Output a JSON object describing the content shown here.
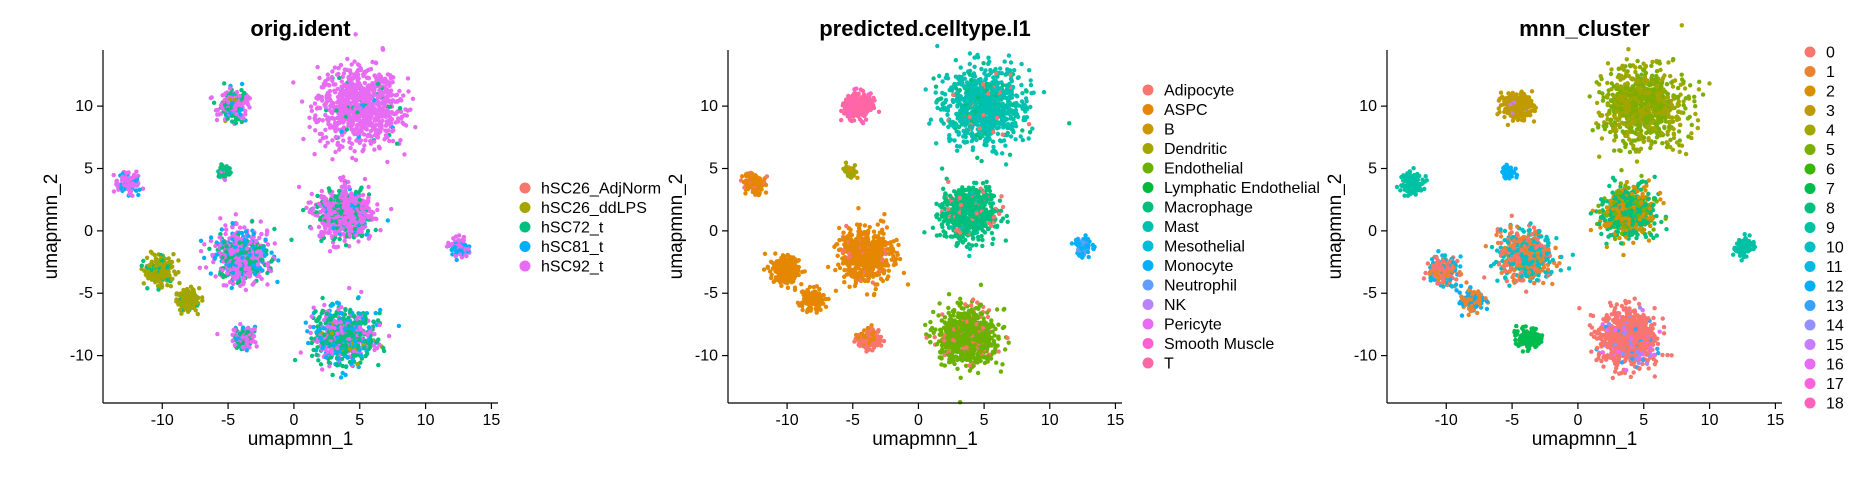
{
  "chart_data": [
    {
      "type": "scatter",
      "title": "orig.ident",
      "xlabel": "umapmnn_1",
      "ylabel": "umapmnn_2",
      "xlim": [
        -14.5,
        15.5
      ],
      "ylim": [
        -13.8,
        14.5
      ],
      "xticks": [
        -10,
        -5,
        0,
        5,
        10,
        15
      ],
      "yticks": [
        -10,
        -5,
        0,
        5,
        10
      ],
      "legend_position": "right",
      "series": [
        {
          "name": "hSC26_AdjNorm",
          "color": "#F8766D"
        },
        {
          "name": "hSC26_ddLPS",
          "color": "#A3A500"
        },
        {
          "name": "hSC72_t",
          "color": "#00BF7D"
        },
        {
          "name": "hSC81_t",
          "color": "#00B0F6"
        },
        {
          "name": "hSC92_t",
          "color": "#E76BF3"
        }
      ],
      "clusters": [
        {
          "cx": 5.0,
          "cy": 10.0,
          "r": 3.6,
          "n": 900,
          "mix": [
            [
              4,
              0.95
            ],
            [
              2,
              0.03
            ],
            [
              3,
              0.02
            ]
          ]
        },
        {
          "cx": -4.6,
          "cy": 10.0,
          "r": 1.3,
          "n": 250,
          "mix": [
            [
              4,
              0.45
            ],
            [
              2,
              0.35
            ],
            [
              3,
              0.15
            ],
            [
              1,
              0.05
            ]
          ]
        },
        {
          "cx": -12.6,
          "cy": 3.8,
          "r": 1.0,
          "n": 120,
          "mix": [
            [
              4,
              0.75
            ],
            [
              3,
              0.25
            ]
          ]
        },
        {
          "cx": -5.2,
          "cy": 4.7,
          "r": 0.6,
          "n": 50,
          "mix": [
            [
              2,
              0.8
            ],
            [
              4,
              0.2
            ]
          ]
        },
        {
          "cx": 3.8,
          "cy": 1.4,
          "r": 2.4,
          "n": 700,
          "mix": [
            [
              4,
              0.7
            ],
            [
              2,
              0.25
            ],
            [
              3,
              0.05
            ]
          ]
        },
        {
          "cx": -4.0,
          "cy": -2.0,
          "r": 2.4,
          "n": 600,
          "mix": [
            [
              4,
              0.55
            ],
            [
              2,
              0.25
            ],
            [
              3,
              0.2
            ]
          ]
        },
        {
          "cx": -10.2,
          "cy": -3.2,
          "r": 1.3,
          "n": 220,
          "mix": [
            [
              1,
              0.85
            ],
            [
              2,
              0.15
            ]
          ]
        },
        {
          "cx": -8.0,
          "cy": -5.6,
          "r": 1.0,
          "n": 140,
          "mix": [
            [
              1,
              0.9
            ],
            [
              2,
              0.1
            ]
          ]
        },
        {
          "cx": 12.6,
          "cy": -1.3,
          "r": 0.9,
          "n": 90,
          "mix": [
            [
              4,
              0.6
            ],
            [
              3,
              0.4
            ]
          ]
        },
        {
          "cx": -3.8,
          "cy": -8.6,
          "r": 1.0,
          "n": 150,
          "mix": [
            [
              4,
              0.5
            ],
            [
              2,
              0.3
            ],
            [
              3,
              0.2
            ]
          ]
        },
        {
          "cx": 3.8,
          "cy": -8.5,
          "r": 2.6,
          "n": 800,
          "mix": [
            [
              2,
              0.4
            ],
            [
              4,
              0.3
            ],
            [
              3,
              0.25
            ],
            [
              1,
              0.05
            ]
          ]
        }
      ]
    },
    {
      "type": "scatter",
      "title": "predicted.celltype.l1",
      "xlabel": "umapmnn_1",
      "ylabel": "umapmnn_2",
      "xlim": [
        -14.5,
        15.5
      ],
      "ylim": [
        -13.8,
        14.5
      ],
      "xticks": [
        -10,
        -5,
        0,
        5,
        10,
        15
      ],
      "yticks": [
        -10,
        -5,
        0,
        5,
        10
      ],
      "legend_position": "right",
      "series": [
        {
          "name": "Adipocyte",
          "color": "#F8766D"
        },
        {
          "name": "ASPC",
          "color": "#E58700"
        },
        {
          "name": "B",
          "color": "#C99800"
        },
        {
          "name": "Dendritic",
          "color": "#A3A500"
        },
        {
          "name": "Endothelial",
          "color": "#6BB100"
        },
        {
          "name": "Lymphatic Endothelial",
          "color": "#00BA38"
        },
        {
          "name": "Macrophage",
          "color": "#00BF7D"
        },
        {
          "name": "Mast",
          "color": "#00C0AF"
        },
        {
          "name": "Mesothelial",
          "color": "#00BCD8"
        },
        {
          "name": "Monocyte",
          "color": "#00B0F6"
        },
        {
          "name": "Neutrophil",
          "color": "#619CFF"
        },
        {
          "name": "NK",
          "color": "#B983FF"
        },
        {
          "name": "Pericyte",
          "color": "#E76BF3"
        },
        {
          "name": "Smooth Muscle",
          "color": "#FD61D1"
        },
        {
          "name": "T",
          "color": "#FF67A4"
        }
      ],
      "clusters": [
        {
          "cx": 5.0,
          "cy": 10.0,
          "r": 3.6,
          "n": 900,
          "mix": [
            [
              7,
              0.85
            ],
            [
              6,
              0.1
            ],
            [
              0,
              0.05
            ]
          ]
        },
        {
          "cx": -4.6,
          "cy": 10.0,
          "r": 1.3,
          "n": 250,
          "mix": [
            [
              14,
              0.9
            ],
            [
              13,
              0.1
            ]
          ]
        },
        {
          "cx": -12.6,
          "cy": 3.8,
          "r": 1.0,
          "n": 120,
          "mix": [
            [
              1,
              0.8
            ],
            [
              0,
              0.2
            ]
          ]
        },
        {
          "cx": -5.2,
          "cy": 4.7,
          "r": 0.6,
          "n": 50,
          "mix": [
            [
              3,
              0.8
            ],
            [
              2,
              0.2
            ]
          ]
        },
        {
          "cx": 3.8,
          "cy": 1.4,
          "r": 2.4,
          "n": 700,
          "mix": [
            [
              6,
              0.85
            ],
            [
              7,
              0.05
            ],
            [
              0,
              0.1
            ]
          ]
        },
        {
          "cx": -4.0,
          "cy": -2.0,
          "r": 2.4,
          "n": 600,
          "mix": [
            [
              1,
              0.95
            ],
            [
              0,
              0.05
            ]
          ]
        },
        {
          "cx": -10.2,
          "cy": -3.2,
          "r": 1.3,
          "n": 220,
          "mix": [
            [
              1,
              1.0
            ]
          ]
        },
        {
          "cx": -8.0,
          "cy": -5.6,
          "r": 1.0,
          "n": 140,
          "mix": [
            [
              1,
              1.0
            ]
          ]
        },
        {
          "cx": 12.6,
          "cy": -1.3,
          "r": 0.9,
          "n": 90,
          "mix": [
            [
              9,
              0.6
            ],
            [
              10,
              0.4
            ]
          ]
        },
        {
          "cx": -3.8,
          "cy": -8.6,
          "r": 1.0,
          "n": 150,
          "mix": [
            [
              0,
              0.7
            ],
            [
              1,
              0.3
            ]
          ]
        },
        {
          "cx": 3.8,
          "cy": -8.5,
          "r": 2.6,
          "n": 800,
          "mix": [
            [
              4,
              0.9
            ],
            [
              0,
              0.1
            ]
          ]
        }
      ]
    },
    {
      "type": "scatter",
      "title": "mnn_cluster",
      "xlabel": "umapmnn_1",
      "ylabel": "umapmnn_2",
      "xlim": [
        -14.5,
        15.5
      ],
      "ylim": [
        -13.8,
        14.5
      ],
      "xticks": [
        -10,
        -5,
        0,
        5,
        10,
        15
      ],
      "yticks": [
        -10,
        -5,
        0,
        5,
        10
      ],
      "legend_position": "right",
      "series": [
        {
          "name": "0",
          "color": "#F8766D"
        },
        {
          "name": "1",
          "color": "#EA8331"
        },
        {
          "name": "2",
          "color": "#D89000"
        },
        {
          "name": "3",
          "color": "#C09B00"
        },
        {
          "name": "4",
          "color": "#A3A500"
        },
        {
          "name": "5",
          "color": "#7CAE00"
        },
        {
          "name": "6",
          "color": "#39B600"
        },
        {
          "name": "7",
          "color": "#00BB4E"
        },
        {
          "name": "8",
          "color": "#00BF7D"
        },
        {
          "name": "9",
          "color": "#00C1A3"
        },
        {
          "name": "10",
          "color": "#00BFC4"
        },
        {
          "name": "11",
          "color": "#00BAE0"
        },
        {
          "name": "12",
          "color": "#00B0F6"
        },
        {
          "name": "13",
          "color": "#35A2FF"
        },
        {
          "name": "14",
          "color": "#9590FF"
        },
        {
          "name": "15",
          "color": "#C77CFF"
        },
        {
          "name": "16",
          "color": "#E76BF3"
        },
        {
          "name": "17",
          "color": "#FA62DB"
        },
        {
          "name": "18",
          "color": "#FF62BC"
        }
      ],
      "clusters": [
        {
          "cx": 5.0,
          "cy": 10.0,
          "r": 3.6,
          "n": 900,
          "mix": [
            [
              4,
              0.5
            ],
            [
              5,
              0.5
            ]
          ]
        },
        {
          "cx": -4.6,
          "cy": 10.0,
          "r": 1.3,
          "n": 250,
          "mix": [
            [
              3,
              0.95
            ],
            [
              15,
              0.05
            ]
          ]
        },
        {
          "cx": -12.6,
          "cy": 3.8,
          "r": 1.0,
          "n": 120,
          "mix": [
            [
              9,
              1.0
            ]
          ]
        },
        {
          "cx": -5.2,
          "cy": 4.7,
          "r": 0.6,
          "n": 50,
          "mix": [
            [
              12,
              1.0
            ]
          ]
        },
        {
          "cx": 3.8,
          "cy": 1.4,
          "r": 2.4,
          "n": 700,
          "mix": [
            [
              8,
              0.5
            ],
            [
              2,
              0.3
            ],
            [
              5,
              0.2
            ]
          ]
        },
        {
          "cx": -4.0,
          "cy": -2.0,
          "r": 2.4,
          "n": 600,
          "mix": [
            [
              10,
              0.45
            ],
            [
              1,
              0.35
            ],
            [
              0,
              0.2
            ]
          ]
        },
        {
          "cx": -10.2,
          "cy": -3.2,
          "r": 1.3,
          "n": 220,
          "mix": [
            [
              0,
              0.4
            ],
            [
              1,
              0.3
            ],
            [
              11,
              0.3
            ]
          ]
        },
        {
          "cx": -8.0,
          "cy": -5.6,
          "r": 1.0,
          "n": 140,
          "mix": [
            [
              1,
              0.5
            ],
            [
              12,
              0.5
            ]
          ]
        },
        {
          "cx": 12.6,
          "cy": -1.3,
          "r": 0.9,
          "n": 90,
          "mix": [
            [
              9,
              1.0
            ]
          ]
        },
        {
          "cx": -3.8,
          "cy": -8.6,
          "r": 1.0,
          "n": 150,
          "mix": [
            [
              7,
              1.0
            ]
          ]
        },
        {
          "cx": 3.8,
          "cy": -8.5,
          "r": 2.6,
          "n": 800,
          "mix": [
            [
              0,
              0.85
            ],
            [
              13,
              0.05
            ],
            [
              14,
              0.05
            ],
            [
              16,
              0.05
            ]
          ]
        }
      ]
    }
  ]
}
